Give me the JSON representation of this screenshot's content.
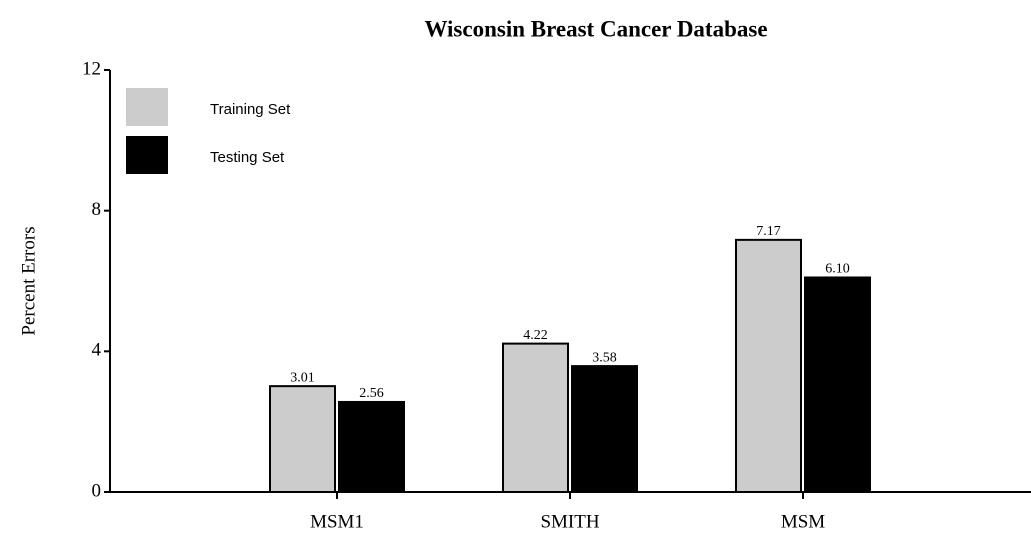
{
  "chart_data": {
    "type": "bar",
    "title": "Wisconsin Breast Cancer Database",
    "y_label": "Percent Errors",
    "categories": [
      "MSM1",
      "SMITH",
      "MSM"
    ],
    "series": [
      {
        "name": "Training Set",
        "color": "#cccccc",
        "values": [
          3.01,
          4.22,
          7.17
        ],
        "value_labels": [
          "3.01",
          "4.22",
          "7.17"
        ]
      },
      {
        "name": "Testing Set",
        "color": "#000000",
        "values": [
          2.56,
          3.58,
          6.1
        ],
        "value_labels": [
          "2.56",
          "3.58",
          "6.10"
        ]
      }
    ],
    "ylim": [
      0,
      12
    ],
    "yticks": [
      0,
      4,
      8,
      12
    ],
    "grid": false,
    "legend": "upper left"
  }
}
